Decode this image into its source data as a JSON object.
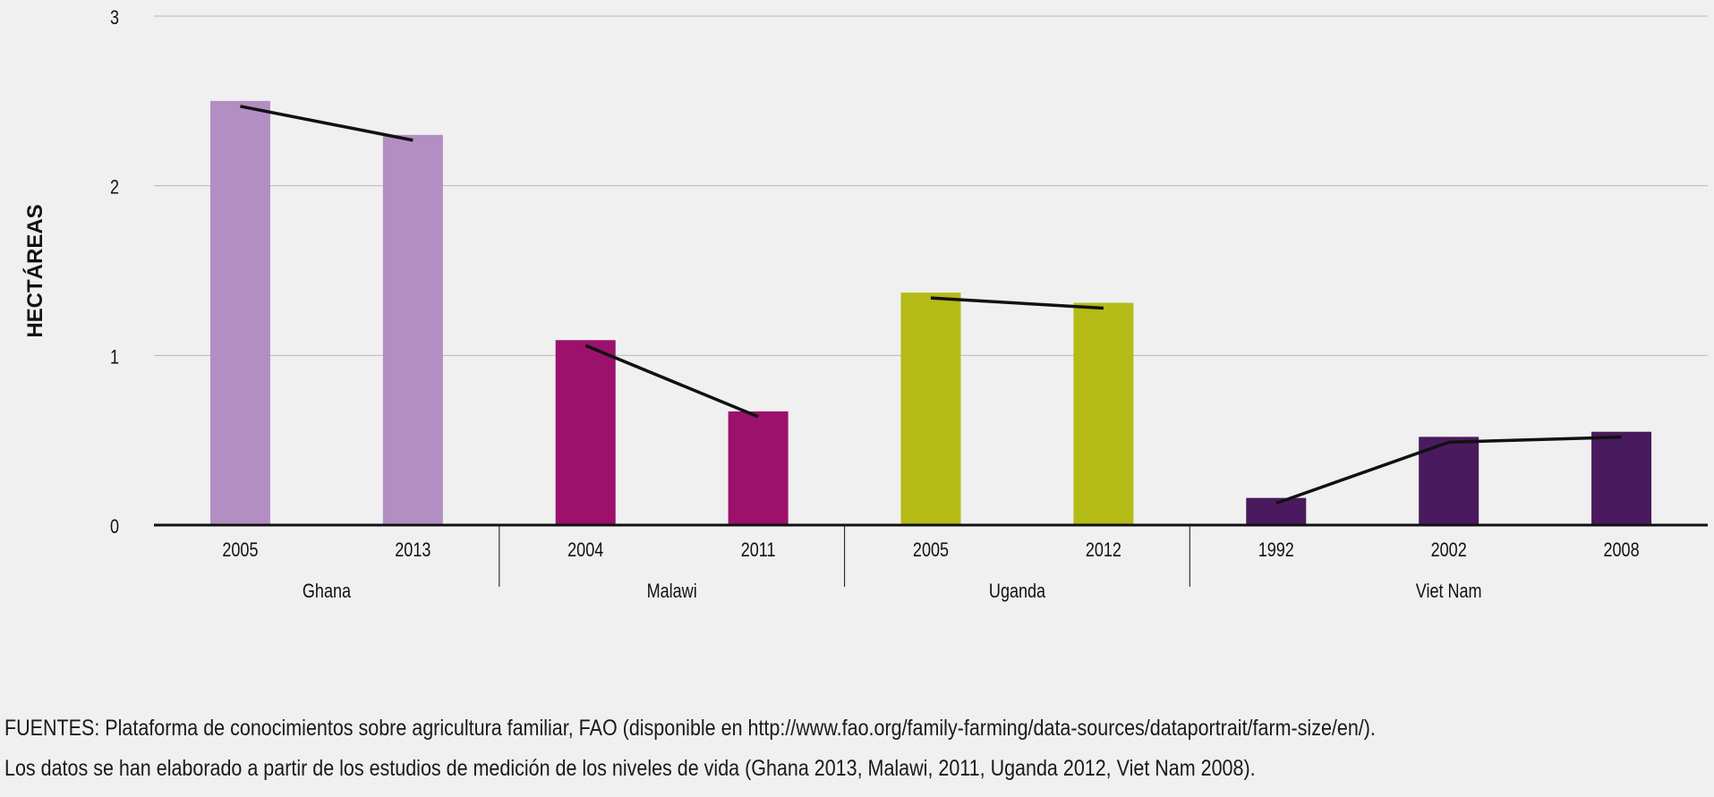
{
  "chart_data": {
    "type": "bar",
    "ylabel": "HECTÁREAS",
    "xlabel": "",
    "ylim": [
      0,
      3
    ],
    "yticks": [
      0,
      1,
      2,
      3
    ],
    "grid": true,
    "groups": [
      {
        "name": "Ghana",
        "color": "#b38ec2",
        "bars": [
          {
            "year": "2005",
            "value": 2.5
          },
          {
            "year": "2013",
            "value": 2.3
          }
        ]
      },
      {
        "name": "Malawi",
        "color": "#9b116b",
        "bars": [
          {
            "year": "2004",
            "value": 1.09
          },
          {
            "year": "2011",
            "value": 0.67
          }
        ]
      },
      {
        "name": "Uganda",
        "color": "#b5bb17",
        "bars": [
          {
            "year": "2005",
            "value": 1.37
          },
          {
            "year": "2012",
            "value": 1.31
          }
        ]
      },
      {
        "name": "Viet Nam",
        "color": "#4a1a5e",
        "bars": [
          {
            "year": "1992",
            "value": 0.16
          },
          {
            "year": "2002",
            "value": 0.52
          },
          {
            "year": "2008",
            "value": 0.55
          }
        ]
      }
    ]
  },
  "footnote": {
    "line1": "FUENTES: Plataforma de conocimientos sobre agricultura familiar, FAO (disponible en http://www.fao.org/family-farming/data-sources/dataportrait/farm-size/en/).",
    "line2": "Los datos se han elaborado a partir de los estudios de medición de los niveles de vida (Ghana 2013, Malawi, 2011, Uganda 2012, Viet Nam 2008)."
  }
}
